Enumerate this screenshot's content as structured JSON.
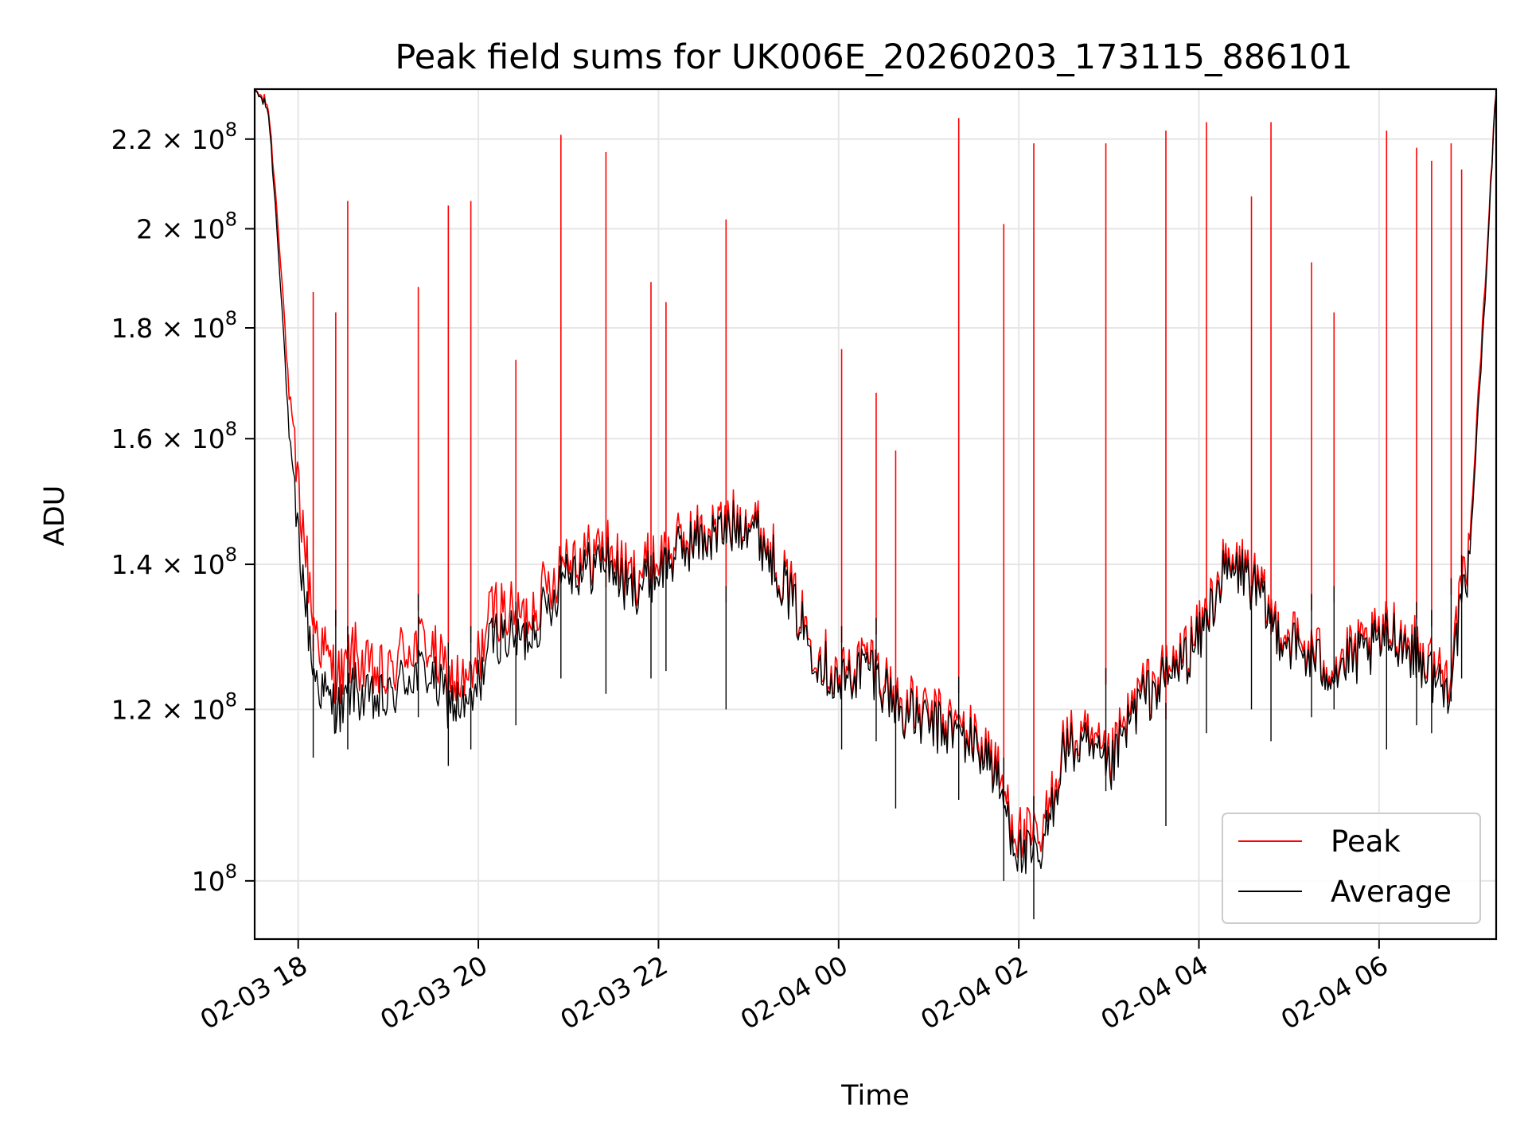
{
  "chart_data": {
    "type": "line",
    "title": "Peak field sums for UK006E_20260203_173115_886101",
    "xlabel": "Time",
    "ylabel": "ADU",
    "yscale": "log",
    "ylim": [
      94000000,
      232000000
    ],
    "xlim": [
      "2026-02-03 17:31",
      "2026-02-04 07:18"
    ],
    "grid": true,
    "legend_position": "lower-right",
    "x_ticks": [
      {
        "t": "2026-02-03 18:00",
        "label": "02-03 18"
      },
      {
        "t": "2026-02-03 20:00",
        "label": "02-03 20"
      },
      {
        "t": "2026-02-03 22:00",
        "label": "02-03 22"
      },
      {
        "t": "2026-02-04 00:00",
        "label": "02-04 00"
      },
      {
        "t": "2026-02-04 02:00",
        "label": "02-04 02"
      },
      {
        "t": "2026-02-04 04:00",
        "label": "02-04 04"
      },
      {
        "t": "2026-02-04 06:00",
        "label": "02-04 06"
      }
    ],
    "y_ticks": [
      {
        "value": 100000000,
        "mantissa": "",
        "exp": "8"
      },
      {
        "value": 120000000,
        "mantissa": "1.2",
        "exp": "8"
      },
      {
        "value": 140000000,
        "mantissa": "1.4",
        "exp": "8"
      },
      {
        "value": 160000000,
        "mantissa": "1.6",
        "exp": "8"
      },
      {
        "value": 180000000,
        "mantissa": "1.8",
        "exp": "8"
      },
      {
        "value": 200000000,
        "mantissa": "2",
        "exp": "8"
      },
      {
        "value": 220000000,
        "mantissa": "2.2",
        "exp": "8"
      }
    ],
    "series": [
      {
        "name": "Peak",
        "color": "#ff0000",
        "t": [
          "2026-02-03 17:31",
          "2026-02-03 17:40",
          "2026-02-03 17:48",
          "2026-02-03 17:55",
          "2026-02-03 18:02",
          "2026-02-03 18:10",
          "2026-02-03 18:20",
          "2026-02-03 18:30",
          "2026-02-03 18:36",
          "2026-02-03 18:45",
          "2026-02-03 19:00",
          "2026-02-03 19:10",
          "2026-02-03 19:25",
          "2026-02-03 19:40",
          "2026-02-03 19:55",
          "2026-02-03 20:10",
          "2026-02-03 20:30",
          "2026-02-03 20:50",
          "2026-02-03 20:58",
          "2026-02-03 21:10",
          "2026-02-03 21:25",
          "2026-02-03 21:40",
          "2026-02-03 22:00",
          "2026-02-03 22:20",
          "2026-02-03 22:45",
          "2026-02-03 23:00",
          "2026-02-03 23:20",
          "2026-02-03 23:40",
          "2026-02-04 00:00",
          "2026-02-04 00:20",
          "2026-02-04 00:40",
          "2026-02-04 01:00",
          "2026-02-04 01:20",
          "2026-02-04 01:40",
          "2026-02-04 02:00",
          "2026-02-04 02:15",
          "2026-02-04 02:30",
          "2026-02-04 02:45",
          "2026-02-04 03:00",
          "2026-02-04 03:20",
          "2026-02-04 03:40",
          "2026-02-04 04:00",
          "2026-02-04 04:15",
          "2026-02-04 04:30",
          "2026-02-04 04:50",
          "2026-02-04 05:10",
          "2026-02-04 05:30",
          "2026-02-04 05:50",
          "2026-02-04 06:10",
          "2026-02-04 06:30",
          "2026-02-04 06:45",
          "2026-02-04 07:00",
          "2026-02-04 07:10",
          "2026-02-04 07:18"
        ],
        "values": [
          232000000,
          228000000,
          195000000,
          162000000,
          148000000,
          132000000,
          126000000,
          124000000,
          128000000,
          125000000,
          124000000,
          128000000,
          129000000,
          124000000,
          123000000,
          134000000,
          132000000,
          138000000,
          142000000,
          141000000,
          143000000,
          138000000,
          141000000,
          144000000,
          146000000,
          148000000,
          140000000,
          130000000,
          124000000,
          127000000,
          121000000,
          119000000,
          118000000,
          115000000,
          105000000,
          104000000,
          116000000,
          116000000,
          113000000,
          122000000,
          125000000,
          130000000,
          139000000,
          140000000,
          132000000,
          128000000,
          126000000,
          128000000,
          131000000,
          127000000,
          124000000,
          141000000,
          185000000,
          232000000
        ]
      },
      {
        "name": "Average",
        "color": "#000000",
        "t": [
          "2026-02-03 17:31",
          "2026-02-03 17:40",
          "2026-02-03 17:48",
          "2026-02-03 17:55",
          "2026-02-03 18:02",
          "2026-02-03 18:10",
          "2026-02-03 18:20",
          "2026-02-03 18:30",
          "2026-02-03 18:36",
          "2026-02-03 18:45",
          "2026-02-03 19:00",
          "2026-02-03 19:10",
          "2026-02-03 19:25",
          "2026-02-03 19:40",
          "2026-02-03 19:55",
          "2026-02-03 20:10",
          "2026-02-03 20:30",
          "2026-02-03 20:50",
          "2026-02-03 20:58",
          "2026-02-03 21:10",
          "2026-02-03 21:25",
          "2026-02-03 21:40",
          "2026-02-03 22:00",
          "2026-02-03 22:20",
          "2026-02-03 22:45",
          "2026-02-03 23:00",
          "2026-02-03 23:20",
          "2026-02-03 23:40",
          "2026-02-04 00:00",
          "2026-02-04 00:20",
          "2026-02-04 00:40",
          "2026-02-04 01:00",
          "2026-02-04 01:20",
          "2026-02-04 01:40",
          "2026-02-04 02:00",
          "2026-02-04 02:15",
          "2026-02-04 02:30",
          "2026-02-04 02:45",
          "2026-02-04 03:00",
          "2026-02-04 03:20",
          "2026-02-04 03:40",
          "2026-02-04 04:00",
          "2026-02-04 04:15",
          "2026-02-04 04:30",
          "2026-02-04 04:50",
          "2026-02-04 05:10",
          "2026-02-04 05:30",
          "2026-02-04 05:50",
          "2026-02-04 06:10",
          "2026-02-04 06:30",
          "2026-02-04 06:45",
          "2026-02-04 07:00",
          "2026-02-04 07:10",
          "2026-02-04 07:18"
        ],
        "values": [
          232000000,
          227000000,
          190000000,
          155000000,
          140000000,
          125000000,
          121000000,
          120000000,
          123000000,
          121000000,
          121000000,
          124000000,
          125000000,
          121000000,
          120000000,
          130000000,
          129000000,
          135000000,
          140000000,
          139000000,
          141000000,
          136000000,
          139000000,
          143000000,
          145000000,
          147000000,
          139000000,
          129000000,
          123000000,
          126000000,
          120000000,
          118000000,
          117000000,
          114000000,
          103000000,
          102000000,
          115000000,
          115000000,
          112000000,
          121000000,
          124000000,
          129000000,
          138000000,
          139000000,
          131000000,
          127000000,
          125000000,
          127000000,
          130000000,
          126000000,
          122000000,
          139000000,
          182000000,
          232000000
        ]
      }
    ],
    "spikes": [
      {
        "t": "2026-02-03 18:10",
        "peak": 187000000,
        "avg_low": 114000000
      },
      {
        "t": "2026-02-03 18:25",
        "peak": 183000000,
        "avg_low": 117000000
      },
      {
        "t": "2026-02-03 18:33",
        "peak": 206000000,
        "avg_low": 115000000
      },
      {
        "t": "2026-02-03 19:20",
        "peak": 188000000,
        "avg_low": 119000000
      },
      {
        "t": "2026-02-03 19:40",
        "peak": 205000000,
        "avg_low": 113000000
      },
      {
        "t": "2026-02-03 19:55",
        "peak": 206000000,
        "avg_low": 115000000
      },
      {
        "t": "2026-02-03 20:25",
        "peak": 174000000,
        "avg_low": 118000000
      },
      {
        "t": "2026-02-03 20:55",
        "peak": 221000000,
        "avg_low": 124000000
      },
      {
        "t": "2026-02-03 21:25",
        "peak": 217000000,
        "avg_low": 122000000
      },
      {
        "t": "2026-02-03 21:55",
        "peak": 189000000,
        "avg_low": 124000000
      },
      {
        "t": "2026-02-03 22:05",
        "peak": 185000000,
        "avg_low": 125000000
      },
      {
        "t": "2026-02-03 22:45",
        "peak": 202000000,
        "avg_low": 120000000
      },
      {
        "t": "2026-02-04 00:02",
        "peak": 176000000,
        "avg_low": 115000000
      },
      {
        "t": "2026-02-04 00:25",
        "peak": 168000000,
        "avg_low": 116000000
      },
      {
        "t": "2026-02-04 00:38",
        "peak": 158000000,
        "avg_low": 108000000
      },
      {
        "t": "2026-02-04 01:20",
        "peak": 225000000,
        "avg_low": 109000000
      },
      {
        "t": "2026-02-04 01:50",
        "peak": 201000000,
        "avg_low": 100000000
      },
      {
        "t": "2026-02-04 02:10",
        "peak": 219000000,
        "avg_low": 96000000
      },
      {
        "t": "2026-02-04 02:58",
        "peak": 219000000,
        "avg_low": 110000000
      },
      {
        "t": "2026-02-04 03:38",
        "peak": 222000000,
        "avg_low": 106000000
      },
      {
        "t": "2026-02-04 04:05",
        "peak": 224000000,
        "avg_low": 117000000
      },
      {
        "t": "2026-02-04 04:35",
        "peak": 207000000,
        "avg_low": 120000000
      },
      {
        "t": "2026-02-04 04:48",
        "peak": 224000000,
        "avg_low": 116000000
      },
      {
        "t": "2026-02-04 05:15",
        "peak": 193000000,
        "avg_low": 119000000
      },
      {
        "t": "2026-02-04 05:30",
        "peak": 183000000,
        "avg_low": 120000000
      },
      {
        "t": "2026-02-04 06:05",
        "peak": 222000000,
        "avg_low": 115000000
      },
      {
        "t": "2026-02-04 06:25",
        "peak": 218000000,
        "avg_low": 118000000
      },
      {
        "t": "2026-02-04 06:35",
        "peak": 215000000,
        "avg_low": 117000000
      },
      {
        "t": "2026-02-04 06:48",
        "peak": 219000000,
        "avg_low": 121000000
      },
      {
        "t": "2026-02-04 06:55",
        "peak": 213000000,
        "avg_low": 124000000
      }
    ]
  }
}
